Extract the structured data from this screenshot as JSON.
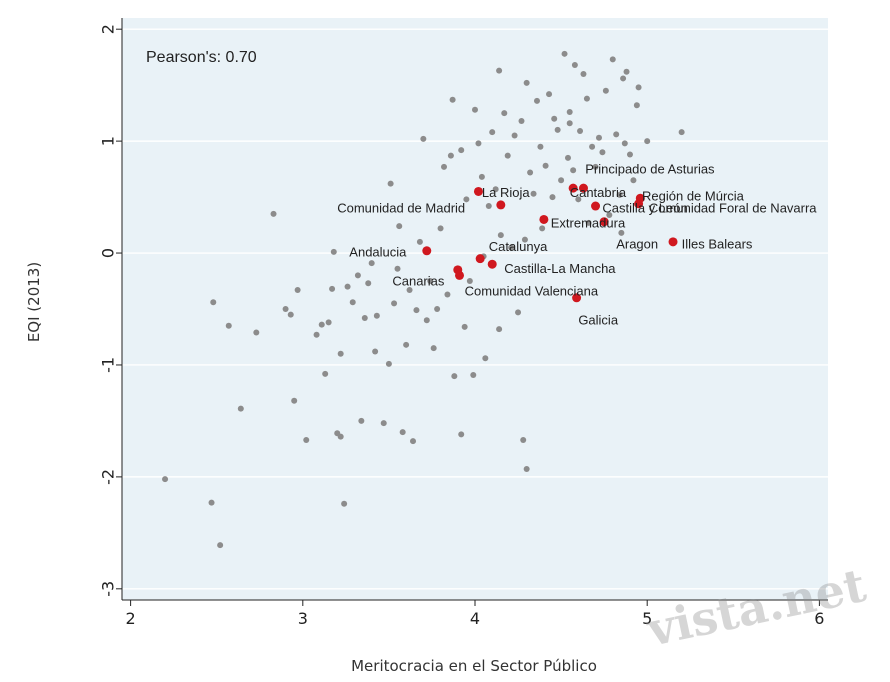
{
  "chart_data": {
    "type": "scatter",
    "title": "",
    "xlabel": "Meritocracia en el Sector Público",
    "ylabel": "EQI (2013)",
    "xlim": [
      1.95,
      6.05
    ],
    "ylim": [
      -3.1,
      2.1
    ],
    "xticks": [
      "2",
      "3",
      "4",
      "5",
      "6"
    ],
    "yticks": [
      "-3",
      "-2",
      "-1",
      "0",
      "1",
      "2"
    ],
    "grid": true,
    "annotation": "Pearson's: 0.70",
    "colors": {
      "background": "#e9f2f7",
      "grid": "#ffffff",
      "other": "#8c8c8c",
      "highlight": "#d0181f"
    },
    "series": [
      {
        "name": "",
        "points": [
          [
            2.2,
            -2.02
          ],
          [
            2.47,
            -2.23
          ],
          [
            2.52,
            -2.61
          ],
          [
            2.48,
            -0.44
          ],
          [
            2.57,
            -0.65
          ],
          [
            2.64,
            -1.39
          ],
          [
            2.73,
            -0.71
          ],
          [
            2.83,
            0.35
          ],
          [
            2.9,
            -0.5
          ],
          [
            2.93,
            -0.55
          ],
          [
            2.95,
            -1.32
          ],
          [
            2.97,
            -0.33
          ],
          [
            3.02,
            -1.67
          ],
          [
            3.08,
            -0.73
          ],
          [
            3.11,
            -0.64
          ],
          [
            3.13,
            -1.08
          ],
          [
            3.15,
            -0.62
          ],
          [
            3.17,
            -0.32
          ],
          [
            3.18,
            0.01
          ],
          [
            3.2,
            -1.61
          ],
          [
            3.22,
            -0.9
          ],
          [
            3.22,
            -1.64
          ],
          [
            3.24,
            -2.24
          ],
          [
            3.26,
            -0.3
          ],
          [
            3.29,
            -0.44
          ],
          [
            3.32,
            -0.2
          ],
          [
            3.34,
            -1.5
          ],
          [
            3.36,
            -0.58
          ],
          [
            3.38,
            -0.27
          ],
          [
            3.4,
            -0.09
          ],
          [
            3.43,
            -0.56
          ],
          [
            3.47,
            -1.52
          ],
          [
            3.5,
            -0.99
          ],
          [
            3.51,
            0.62
          ],
          [
            3.53,
            -0.45
          ],
          [
            3.55,
            -0.14
          ],
          [
            3.58,
            -1.6
          ],
          [
            3.6,
            -0.82
          ],
          [
            3.62,
            -0.33
          ],
          [
            3.64,
            -1.68
          ],
          [
            3.66,
            -0.51
          ],
          [
            3.68,
            0.1
          ],
          [
            3.7,
            1.02
          ],
          [
            3.72,
            -0.6
          ],
          [
            3.74,
            -0.25
          ],
          [
            3.76,
            -0.85
          ],
          [
            3.78,
            -0.5
          ],
          [
            3.8,
            0.22
          ],
          [
            3.82,
            0.77
          ],
          [
            3.84,
            -0.37
          ],
          [
            3.86,
            0.87
          ],
          [
            3.87,
            1.37
          ],
          [
            3.88,
            -1.1
          ],
          [
            3.9,
            -0.14
          ],
          [
            3.92,
            0.92
          ],
          [
            3.94,
            -0.66
          ],
          [
            3.95,
            0.48
          ],
          [
            3.97,
            -0.25
          ],
          [
            3.99,
            -1.09
          ],
          [
            4.0,
            1.28
          ],
          [
            4.02,
            0.98
          ],
          [
            4.04,
            0.68
          ],
          [
            4.05,
            -0.03
          ],
          [
            4.06,
            -0.94
          ],
          [
            4.08,
            0.42
          ],
          [
            4.1,
            1.08
          ],
          [
            4.12,
            0.57
          ],
          [
            4.14,
            1.63
          ],
          [
            4.15,
            0.16
          ],
          [
            4.17,
            1.25
          ],
          [
            4.19,
            0.87
          ],
          [
            4.21,
            0.05
          ],
          [
            4.23,
            1.05
          ],
          [
            4.25,
            -0.53
          ],
          [
            4.27,
            1.18
          ],
          [
            4.29,
            0.12
          ],
          [
            4.3,
            1.52
          ],
          [
            4.32,
            0.72
          ],
          [
            4.34,
            0.53
          ],
          [
            4.36,
            1.36
          ],
          [
            4.38,
            0.95
          ],
          [
            4.39,
            0.22
          ],
          [
            4.41,
            0.78
          ],
          [
            4.43,
            1.42
          ],
          [
            4.45,
            0.5
          ],
          [
            4.46,
            1.2
          ],
          [
            4.48,
            1.1
          ],
          [
            4.5,
            0.65
          ],
          [
            4.52,
            1.78
          ],
          [
            4.54,
            0.85
          ],
          [
            4.55,
            1.26
          ],
          [
            4.57,
            0.74
          ],
          [
            4.58,
            1.68
          ],
          [
            4.6,
            0.48
          ],
          [
            4.61,
            1.09
          ],
          [
            4.63,
            1.6
          ],
          [
            4.65,
            1.38
          ],
          [
            4.66,
            0.27
          ],
          [
            4.68,
            0.95
          ],
          [
            4.7,
            0.77
          ],
          [
            4.72,
            1.03
          ],
          [
            4.74,
            0.9
          ],
          [
            4.76,
            1.45
          ],
          [
            4.78,
            0.34
          ],
          [
            4.8,
            1.73
          ],
          [
            4.82,
            1.06
          ],
          [
            4.84,
            0.52
          ],
          [
            4.86,
            1.56
          ],
          [
            4.87,
            0.98
          ],
          [
            4.88,
            1.62
          ],
          [
            4.9,
            0.88
          ],
          [
            4.92,
            0.65
          ],
          [
            4.94,
            1.32
          ],
          [
            4.95,
            1.48
          ],
          [
            5.0,
            1.0
          ],
          [
            5.2,
            1.08
          ],
          [
            4.28,
            -1.67
          ],
          [
            4.3,
            -1.93
          ],
          [
            4.14,
            -0.68
          ],
          [
            3.92,
            -1.62
          ],
          [
            3.42,
            -0.88
          ],
          [
            3.56,
            0.24
          ],
          [
            4.55,
            1.16
          ],
          [
            4.85,
            0.18
          ]
        ]
      },
      {
        "name": "",
        "points": [
          [
            3.72,
            0.02
          ],
          [
            3.9,
            -0.15
          ],
          [
            3.91,
            -0.2
          ],
          [
            4.03,
            -0.05
          ],
          [
            4.1,
            -0.1
          ],
          [
            4.02,
            0.55
          ],
          [
            4.15,
            0.43
          ],
          [
            4.4,
            0.3
          ],
          [
            4.57,
            0.58
          ],
          [
            4.63,
            0.58
          ],
          [
            4.59,
            -0.4
          ],
          [
            4.7,
            0.42
          ],
          [
            4.75,
            0.28
          ],
          [
            4.95,
            0.44
          ],
          [
            4.96,
            0.49
          ],
          [
            5.15,
            0.1
          ]
        ],
        "labels": [
          "Andalucia",
          "Canarias",
          "",
          "Castilla-La Mancha",
          "Comunidad Valenciana",
          "La Rioja",
          "Comunidad de Madrid",
          "Extremadura",
          "Cantabria",
          "Principado de Asturias",
          "Galicia",
          "Castilla y León",
          "Aragon",
          "Comunidad Foral de Navarra",
          "Región de Múrcia",
          "Illes Balears"
        ]
      }
    ],
    "point_labels": [
      {
        "text": "Principado de Asturias",
        "x": 4.64,
        "y": 0.71
      },
      {
        "text": "La Rioja",
        "x": 4.04,
        "y": 0.5
      },
      {
        "text": "Cantabria",
        "x": 4.55,
        "y": 0.5
      },
      {
        "text": "Región de Múrcia",
        "x": 4.97,
        "y": 0.47
      },
      {
        "text": "Comunidad de Madrid",
        "x": 3.2,
        "y": 0.36
      },
      {
        "text": "Castilla y León",
        "x": 4.74,
        "y": 0.36
      },
      {
        "text": "Comunidad Foral de Navarra",
        "x": 5.01,
        "y": 0.36
      },
      {
        "text": "Extremadura",
        "x": 4.44,
        "y": 0.23
      },
      {
        "text": "Catalunya",
        "x": 4.08,
        "y": 0.02
      },
      {
        "text": "Aragon",
        "x": 4.82,
        "y": 0.04
      },
      {
        "text": "Illes Balears",
        "x": 5.2,
        "y": 0.04
      },
      {
        "text": "Andalucia",
        "x": 3.27,
        "y": -0.03
      },
      {
        "text": "Castilla-La Mancha",
        "x": 4.17,
        "y": -0.18
      },
      {
        "text": "Canarias",
        "x": 3.52,
        "y": -0.29
      },
      {
        "text": "Comunidad Valenciana",
        "x": 3.94,
        "y": -0.38
      },
      {
        "text": "Galicia",
        "x": 4.6,
        "y": -0.64
      }
    ]
  },
  "watermark": "vista.net"
}
